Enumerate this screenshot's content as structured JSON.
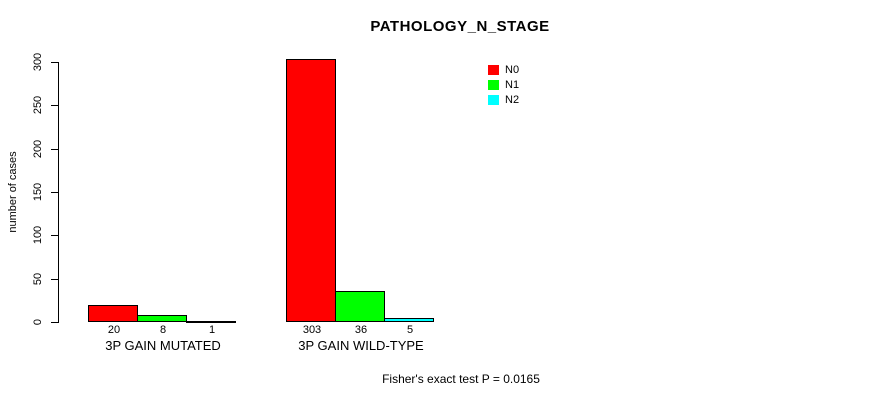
{
  "figure": {
    "title": "PATHOLOGY_N_STAGE",
    "annotation": "Fisher's exact test P = 0.0165"
  },
  "chart_data": {
    "type": "bar",
    "title": "PATHOLOGY_N_STAGE",
    "xlabel": "",
    "ylabel": "number of cases",
    "ylim": [
      0,
      300
    ],
    "yticks": [
      0,
      50,
      100,
      150,
      200,
      250,
      300
    ],
    "grid": false,
    "legend_position": "top-right-inside",
    "categories": [
      "3P GAIN MUTATED",
      "3P GAIN WILD-TYPE"
    ],
    "series": [
      {
        "name": "N0",
        "color": "#FF0000",
        "values": [
          20,
          303
        ]
      },
      {
        "name": "N1",
        "color": "#00FF00",
        "values": [
          8,
          36
        ]
      },
      {
        "name": "N2",
        "color": "#00FFFF",
        "values": [
          1,
          5
        ]
      }
    ],
    "bar_value_labels_shown": true,
    "annotation": "Fisher's exact test P = 0.0165"
  }
}
